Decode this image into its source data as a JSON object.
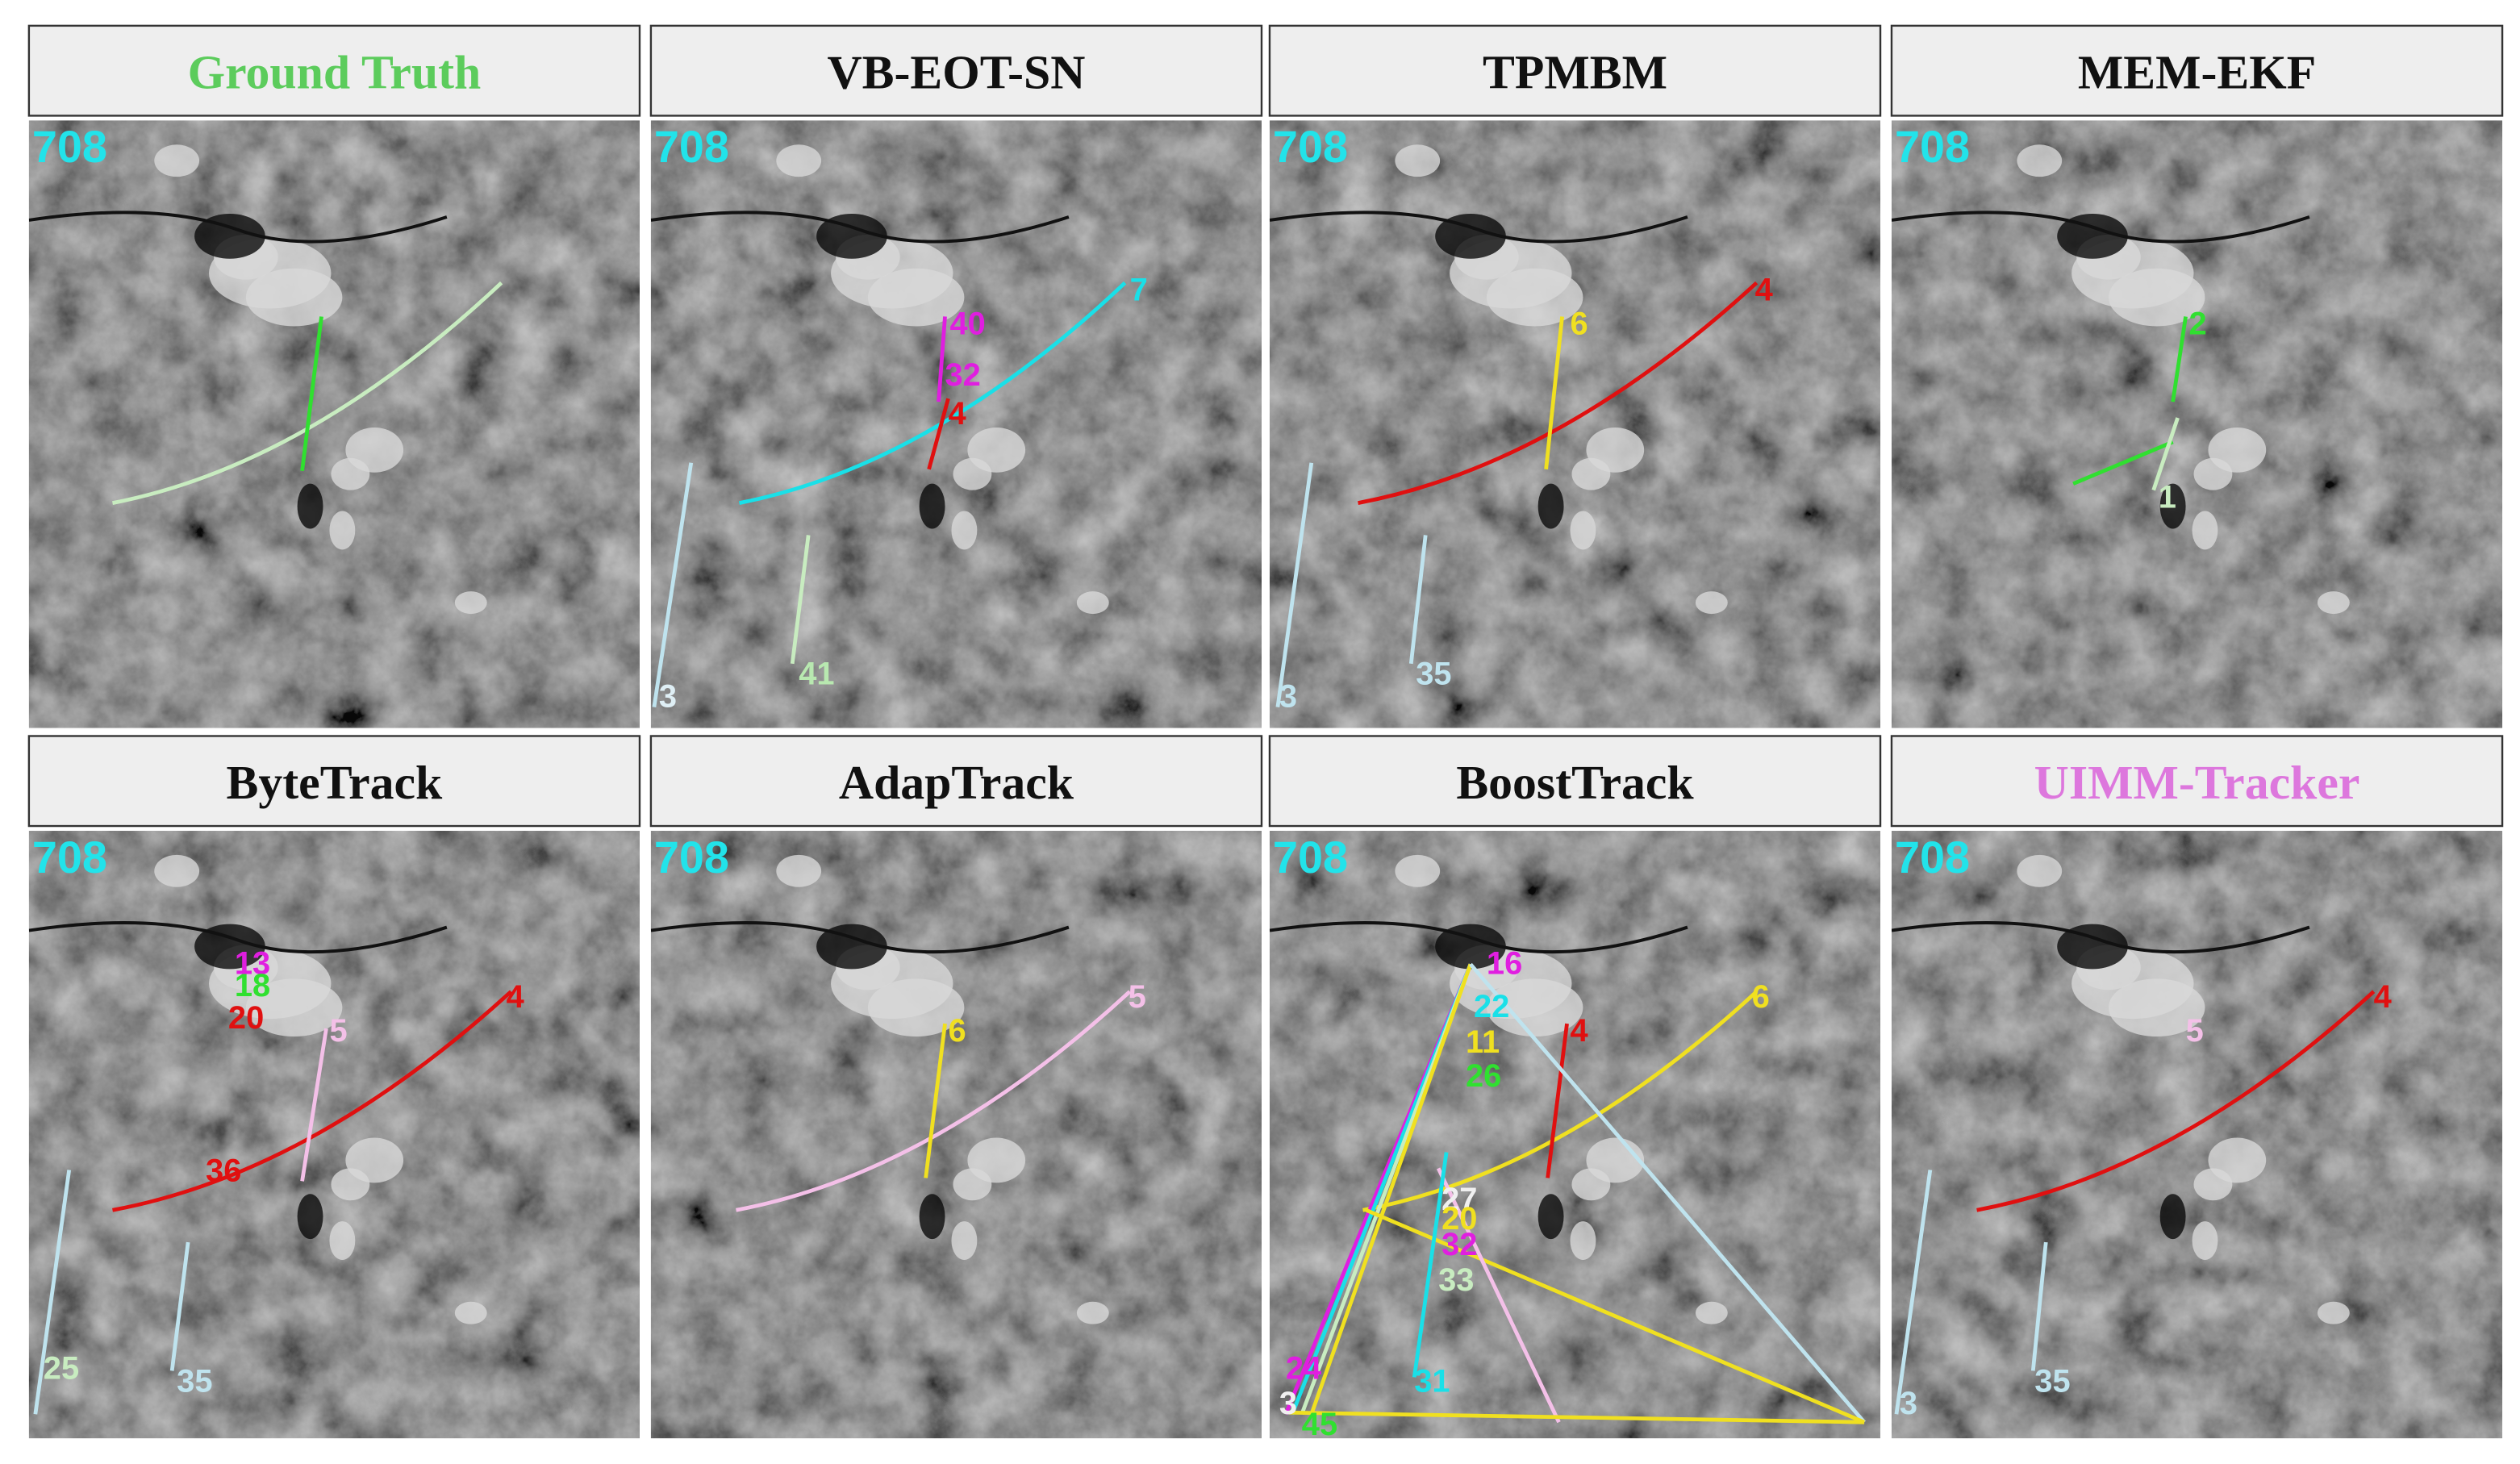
{
  "panels": [
    {
      "title": "Ground Truth",
      "title_color": "#5ccc5c",
      "frame": "708"
    },
    {
      "title": "VB-EOT-SN",
      "title_color": "#111111",
      "frame": "708",
      "labels": [
        {
          "text": "7",
          "color": "#19e0e8"
        },
        {
          "text": "40",
          "color": "#e01ee0"
        },
        {
          "text": "32",
          "color": "#e01ee0"
        },
        {
          "text": "4",
          "color": "#e01010"
        },
        {
          "text": "3",
          "color": "#dfeff5"
        },
        {
          "text": "41",
          "color": "#b8e8b0"
        }
      ]
    },
    {
      "title": "TPMBM",
      "title_color": "#111111",
      "frame": "708",
      "labels": [
        {
          "text": "4",
          "color": "#e01010"
        },
        {
          "text": "6",
          "color": "#f0e020"
        },
        {
          "text": "3",
          "color": "#bfe3ee"
        },
        {
          "text": "35",
          "color": "#bfe3ee"
        }
      ]
    },
    {
      "title": "MEM-EKF",
      "title_color": "#111111",
      "frame": "708",
      "labels": [
        {
          "text": "2",
          "color": "#30e030"
        },
        {
          "text": "1",
          "color": "#c8ecc0"
        }
      ]
    },
    {
      "title": "ByteTrack",
      "title_color": "#111111",
      "frame": "708",
      "labels": [
        {
          "text": "4",
          "color": "#e01010"
        },
        {
          "text": "5",
          "color": "#f4c0e8"
        },
        {
          "text": "13",
          "color": "#e01ee0"
        },
        {
          "text": "18",
          "color": "#30e030"
        },
        {
          "text": "20",
          "color": "#e01010"
        },
        {
          "text": "36",
          "color": "#e01010"
        },
        {
          "text": "25",
          "color": "#c8ecc0"
        },
        {
          "text": "35",
          "color": "#bfe3ee"
        }
      ]
    },
    {
      "title": "AdapTrack",
      "title_color": "#111111",
      "frame": "708",
      "labels": [
        {
          "text": "5",
          "color": "#f4c0e8"
        },
        {
          "text": "6",
          "color": "#f0e020"
        }
      ]
    },
    {
      "title": "BoostTrack",
      "title_color": "#111111",
      "frame": "708",
      "labels": [
        {
          "text": "6",
          "color": "#f0e020"
        },
        {
          "text": "4",
          "color": "#e01010"
        },
        {
          "text": "16",
          "color": "#e01ee0"
        },
        {
          "text": "22",
          "color": "#19e0e8"
        },
        {
          "text": "11",
          "color": "#f0e020"
        },
        {
          "text": "26",
          "color": "#30e030"
        },
        {
          "text": "27",
          "color": "#f0f0f0"
        },
        {
          "text": "20",
          "color": "#f0e020"
        },
        {
          "text": "32",
          "color": "#e01ee0"
        },
        {
          "text": "33",
          "color": "#c8ecc0"
        },
        {
          "text": "31",
          "color": "#19e0e8"
        },
        {
          "text": "24",
          "color": "#e01ee0"
        },
        {
          "text": "3",
          "color": "#f0f0f0"
        },
        {
          "text": "45",
          "color": "#30e030"
        }
      ]
    },
    {
      "title": "UIMM-Tracker",
      "title_color": "#dd77dd",
      "frame": "708",
      "labels": [
        {
          "text": "4",
          "color": "#e01010"
        },
        {
          "text": "5",
          "color": "#f4c0e8"
        },
        {
          "text": "3",
          "color": "#bfe3ee"
        },
        {
          "text": "35",
          "color": "#bfe3ee"
        }
      ]
    }
  ]
}
